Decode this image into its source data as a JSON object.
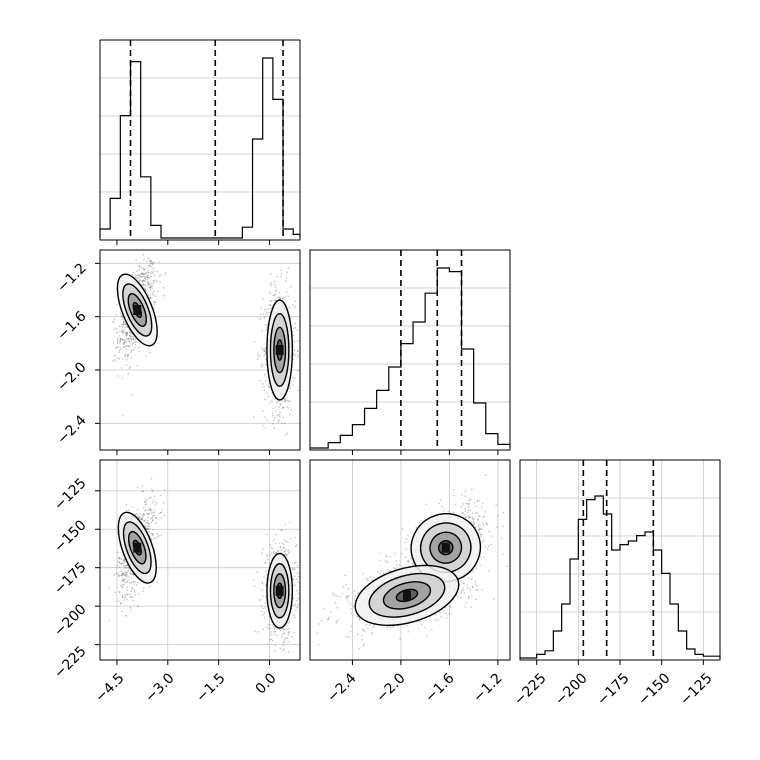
{
  "figure": {
    "background": "#ffffff",
    "line_color": "#000000",
    "grid_color": "#c8c8c8"
  },
  "chart_data": [
    {
      "type": "histogram",
      "panel": "p1",
      "xlim": [
        -5.0,
        0.9
      ],
      "bin_edges": [
        -5.0,
        -4.7,
        -4.4,
        -4.1,
        -3.8,
        -3.5,
        -3.2,
        -2.9,
        -2.6,
        -2.3,
        -2.0,
        -1.7,
        -1.4,
        -1.1,
        -0.8,
        -0.5,
        -0.2,
        0.1,
        0.4,
        0.7,
        0.9
      ],
      "counts": [
        0.05,
        0.22,
        0.68,
        0.98,
        0.34,
        0.07,
        0,
        0,
        0,
        0,
        0,
        0,
        0,
        0,
        0.06,
        0.55,
        1.0,
        0.77,
        0.05,
        0.02
      ],
      "quantile_lines": [
        -4.1,
        -1.6,
        0.4
      ],
      "grid": true
    },
    {
      "type": "scatter_density",
      "panel": "p4",
      "x_range": [
        -5.0,
        0.9
      ],
      "y_range": [
        -2.6,
        -1.1
      ],
      "clusters": [
        {
          "mean": [
            -3.9,
            -1.55
          ],
          "std": [
            0.2,
            0.13
          ],
          "corr": 0.55
        },
        {
          "mean": [
            0.3,
            -1.85
          ],
          "std": [
            0.17,
            0.17
          ],
          "corr": 0.0
        }
      ],
      "yticks": [
        -1.2,
        -1.6,
        -2.0,
        -2.4
      ],
      "grid": true
    },
    {
      "type": "histogram",
      "panel": "p5",
      "xlim": [
        -2.75,
        -1.1
      ],
      "bin_edges": [
        -2.75,
        -2.6,
        -2.5,
        -2.4,
        -2.3,
        -2.2,
        -2.1,
        -2.0,
        -1.9,
        -1.8,
        -1.7,
        -1.6,
        -1.5,
        -1.4,
        -1.3,
        -1.2,
        -1.1
      ],
      "counts": [
        0.0,
        0.03,
        0.07,
        0.13,
        0.22,
        0.32,
        0.45,
        0.58,
        0.7,
        0.86,
        1.0,
        0.98,
        0.55,
        0.25,
        0.08,
        0.02
      ],
      "quantile_lines": [
        -2.0,
        -1.7,
        -1.5
      ],
      "grid": true
    },
    {
      "type": "scatter_density",
      "panel": "p7",
      "x_range": [
        -5.0,
        0.9
      ],
      "y_range": [
        -235,
        -105
      ],
      "clusters": [
        {
          "mean": [
            -3.9,
            -162
          ],
          "std": [
            0.2,
            11
          ],
          "corr": 0.5
        },
        {
          "mean": [
            0.3,
            -190
          ],
          "std": [
            0.17,
            11
          ],
          "corr": 0.0
        }
      ],
      "xticks": [
        -4.5,
        -3.0,
        -1.5,
        0.0
      ],
      "yticks": [
        -125,
        -150,
        -175,
        -200,
        -225
      ],
      "grid": true
    },
    {
      "type": "scatter_density",
      "panel": "p8",
      "x_range": [
        -2.75,
        -1.1
      ],
      "y_range": [
        -235,
        -105
      ],
      "clusters": [
        {
          "mean": [
            -1.63,
            -162
          ],
          "std": [
            0.13,
            10
          ],
          "corr": 0.55
        },
        {
          "mean": [
            -1.95,
            -193
          ],
          "std": [
            0.2,
            8
          ],
          "corr": 0.4
        }
      ],
      "xticks": [
        -2.4,
        -2.0,
        -1.6,
        -1.2
      ],
      "grid": true
    },
    {
      "type": "histogram",
      "panel": "p9",
      "xlim": [
        -235,
        -115
      ],
      "bin_edges": [
        -235,
        -225,
        -220,
        -215,
        -210,
        -205,
        -200,
        -195,
        -190,
        -185,
        -180,
        -175,
        -170,
        -165,
        -160,
        -155,
        -150,
        -145,
        -140,
        -135,
        -130,
        -125,
        -115
      ],
      "counts": [
        0.0,
        0.02,
        0.04,
        0.15,
        0.3,
        0.55,
        0.77,
        0.88,
        0.9,
        0.8,
        0.6,
        0.63,
        0.65,
        0.68,
        0.7,
        0.6,
        0.47,
        0.3,
        0.15,
        0.05,
        0.02,
        0.01
      ],
      "quantile_lines": [
        -197,
        -183,
        -155
      ],
      "xticks": [
        -225,
        -200,
        -175,
        -150,
        -125
      ],
      "grid": true
    }
  ],
  "tick_labels": {
    "p4_y": [
      "−1.2",
      "−1.6",
      "−2.0",
      "−2.4"
    ],
    "p7_y": [
      "−125",
      "−150",
      "−175",
      "−200",
      "−225"
    ],
    "p7_x": [
      "−4.5",
      "−3.0",
      "−1.5",
      "0.0"
    ],
    "p8_x": [
      "−2.4",
      "−2.0",
      "−1.6",
      "−1.2"
    ],
    "p9_x": [
      "−225",
      "−200",
      "−175",
      "−150",
      "−125"
    ]
  }
}
